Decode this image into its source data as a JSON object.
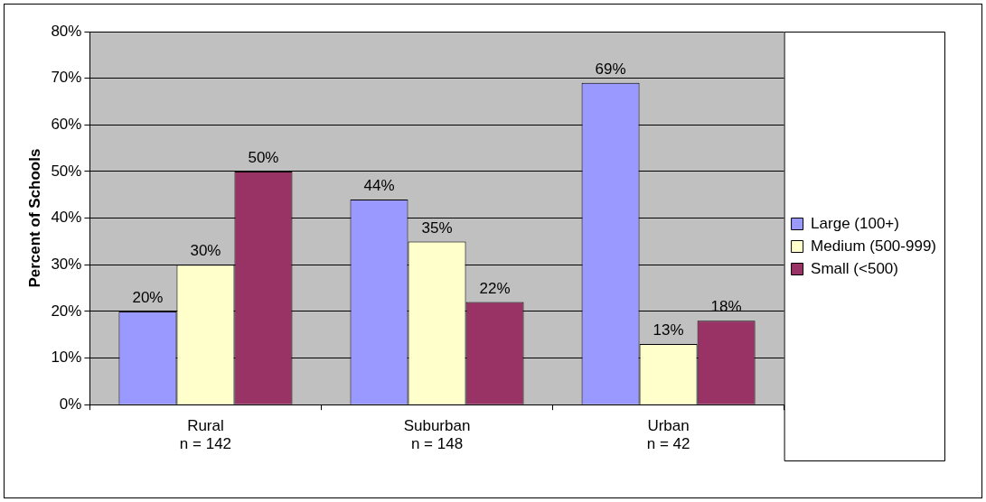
{
  "chart_data": {
    "type": "bar",
    "ylabel": "Percent of Schools",
    "categories": [
      "Rural\nn = 142",
      "Suburban\nn = 148",
      "Urban\nn = 42"
    ],
    "series": [
      {
        "name": "Large (100+)",
        "color": "#9999ff",
        "values": [
          20,
          44,
          69
        ],
        "value_labels": [
          "20%",
          "44%",
          "69%"
        ]
      },
      {
        "name": "Medium (500-999)",
        "color": "#ffffcc",
        "values": [
          30,
          35,
          13
        ],
        "value_labels": [
          "30%",
          "35%",
          "13%"
        ]
      },
      {
        "name": "Small (<500)",
        "color": "#993366",
        "values": [
          50,
          22,
          18
        ],
        "value_labels": [
          "50%",
          "22%",
          "18%"
        ]
      }
    ],
    "ylim": [
      0,
      80
    ],
    "yticks": [
      {
        "value": 0,
        "label": "0%"
      },
      {
        "value": 10,
        "label": "10%"
      },
      {
        "value": 20,
        "label": "20%"
      },
      {
        "value": 30,
        "label": "30%"
      },
      {
        "value": 40,
        "label": "40%"
      },
      {
        "value": 50,
        "label": "50%"
      },
      {
        "value": 60,
        "label": "60%"
      },
      {
        "value": 70,
        "label": "70%"
      },
      {
        "value": 80,
        "label": "80%"
      }
    ],
    "grid": "y",
    "legend": "right"
  }
}
